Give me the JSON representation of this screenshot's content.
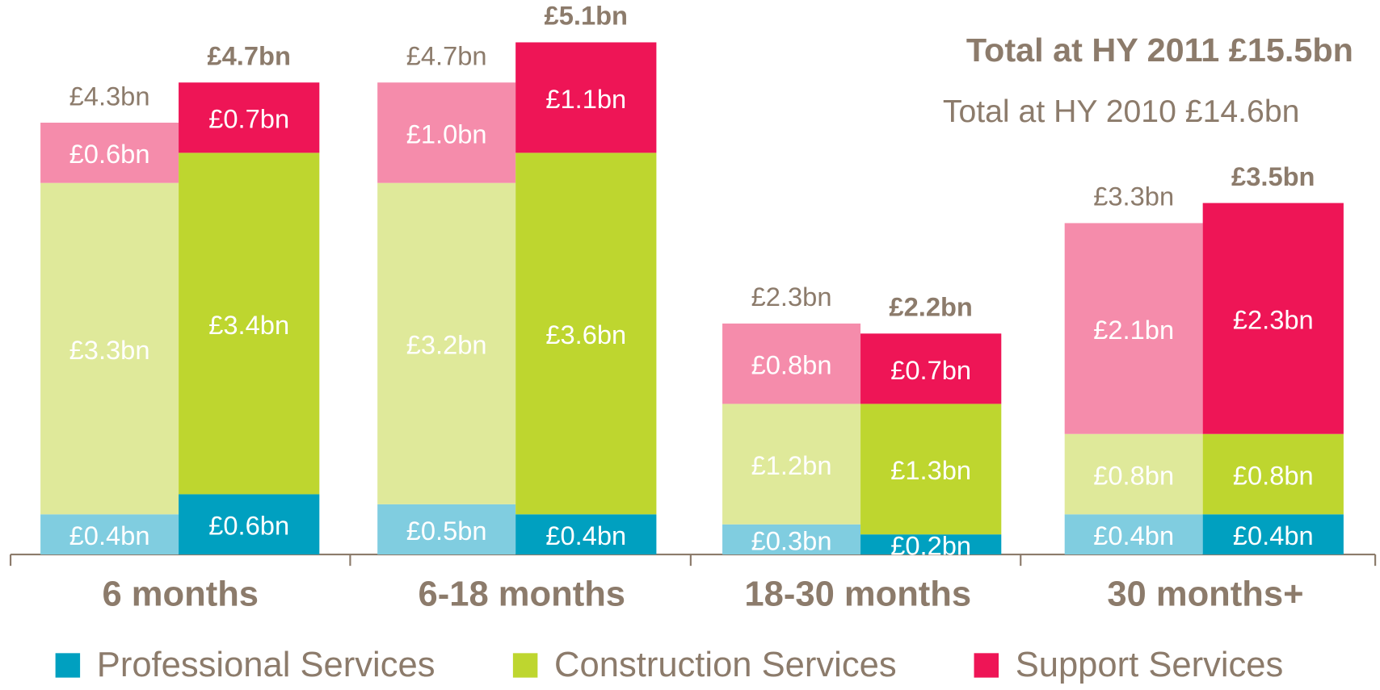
{
  "chart_data": {
    "type": "stacked_grouped_bar",
    "annotations": [
      "Total at HY 2011 £15.5bn",
      "Total at HY 2010 £14.6bn"
    ],
    "categories": [
      "6 months",
      "6-18 months",
      "18-30 months",
      "30 months+"
    ],
    "series": [
      {
        "name": "Professional Services",
        "color": "#00a0c0",
        "color_light": "#80cde0",
        "values": [
          [
            0.4,
            0.6
          ],
          [
            0.5,
            0.4
          ],
          [
            0.3,
            0.2
          ],
          [
            0.4,
            0.4
          ]
        ],
        "value_labels": [
          [
            "£0.4bn",
            "£0.6bn"
          ],
          [
            "£0.5bn",
            "£0.4bn"
          ],
          [
            "£0.3bn",
            "£0.2bn"
          ],
          [
            "£0.4bn",
            "£0.4bn"
          ]
        ]
      },
      {
        "name": "Construction Services",
        "color": "#bed62f",
        "color_light": "#dfe99a",
        "values": [
          [
            3.3,
            3.4
          ],
          [
            3.2,
            3.6
          ],
          [
            1.2,
            1.3
          ],
          [
            0.8,
            0.8
          ]
        ],
        "value_labels": [
          [
            "£3.3bn",
            "£3.4bn"
          ],
          [
            "£3.2bn",
            "£3.6bn"
          ],
          [
            "£1.2bn",
            "£1.3bn"
          ],
          [
            "£0.8bn",
            "£0.8bn"
          ]
        ]
      },
      {
        "name": "Support Services",
        "color": "#ee1556",
        "color_light": "#f58cab",
        "values": [
          [
            0.6,
            0.7
          ],
          [
            1.0,
            1.1
          ],
          [
            0.8,
            0.7
          ],
          [
            2.1,
            2.3
          ]
        ],
        "value_labels": [
          [
            "£0.6bn",
            "£0.7bn"
          ],
          [
            "£1.0bn",
            "£1.1bn"
          ],
          [
            "£0.8bn",
            "£0.7bn"
          ],
          [
            "£2.1bn",
            "£2.3bn"
          ]
        ]
      }
    ],
    "totals": [
      [
        4.3,
        4.7
      ],
      [
        4.7,
        5.1
      ],
      [
        2.3,
        2.2
      ],
      [
        3.3,
        3.5
      ]
    ],
    "total_labels": [
      [
        "£4.3bn",
        "£4.7bn"
      ],
      [
        "£4.7bn",
        "£5.1bn"
      ],
      [
        "£2.3bn",
        "£2.2bn"
      ],
      [
        "£3.3bn",
        "£3.5bn"
      ]
    ]
  }
}
